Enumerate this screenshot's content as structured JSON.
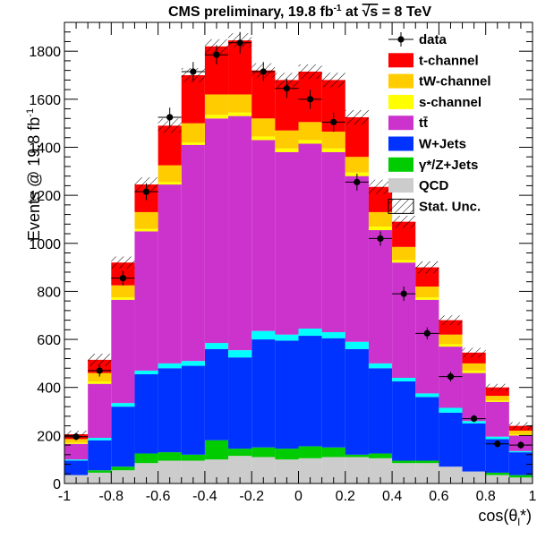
{
  "chart_data": {
    "type": "bar",
    "subtype": "stacked-histogram",
    "title_main": "CMS preliminary, 19.8 fb",
    "title_sup": "-1",
    "title_mid": " at ",
    "title_sqrt": "√s",
    "title_end": " = 8 TeV",
    "xlabel": "cos(θ",
    "xlabel_sub": "l",
    "xlabel_end": "*)",
    "ylabel": "Events @ 19.8 fb",
    "ylabel_sup": "-1",
    "xlim": [
      -1,
      1
    ],
    "ylim": [
      0,
      1920
    ],
    "bin_edges": [
      -1.0,
      -0.9,
      -0.8,
      -0.7,
      -0.6,
      -0.5,
      -0.4,
      -0.3,
      -0.2,
      -0.1,
      0.0,
      0.1,
      0.2,
      0.3,
      0.4,
      0.5,
      0.6,
      0.7,
      0.8,
      0.9,
      1.0
    ],
    "x_ticks": [
      -1,
      -0.8,
      -0.6,
      -0.4,
      -0.2,
      0,
      0.2,
      0.4,
      0.6,
      0.8,
      1
    ],
    "x_tick_labels": [
      "-1",
      "-0.8",
      "-0.6",
      "-0.4",
      "-0.2",
      "0",
      "0.2",
      "0.4",
      "0.6",
      "0.8",
      "1"
    ],
    "y_ticks": [
      0,
      200,
      400,
      600,
      800,
      1000,
      1200,
      1400,
      1600,
      1800
    ],
    "y_tick_labels": [
      "0",
      "200",
      "400",
      "600",
      "800",
      "1000",
      "1200",
      "1400",
      "1600",
      "1800"
    ],
    "series": [
      {
        "name": "QCD",
        "color": "#cccccc",
        "values": [
          35,
          45,
          55,
          85,
          95,
          95,
          100,
          115,
          110,
          100,
          105,
          110,
          110,
          105,
          85,
          85,
          70,
          50,
          35,
          25
        ]
      },
      {
        "name": "γ*/Z+Jets",
        "color": "#00cc00",
        "values": [
          0,
          10,
          15,
          40,
          35,
          25,
          80,
          30,
          40,
          45,
          50,
          40,
          10,
          20,
          10,
          10,
          0,
          0,
          10,
          10
        ]
      },
      {
        "name": "W+Jets",
        "color": "#0033ff",
        "values": [
          60,
          125,
          250,
          330,
          350,
          370,
          380,
          380,
          450,
          450,
          460,
          455,
          440,
          355,
          330,
          265,
          225,
          200,
          140,
          95
        ]
      },
      {
        "name": "W+Jets (light)",
        "color": "#00ffff",
        "values": [
          5,
          10,
          15,
          15,
          20,
          20,
          25,
          30,
          35,
          25,
          30,
          25,
          30,
          20,
          15,
          15,
          20,
          10,
          10,
          5
        ]
      },
      {
        "name": "tt̄",
        "color": "#cc33cc",
        "values": [
          65,
          225,
          430,
          580,
          745,
          900,
          935,
          975,
          795,
          760,
          770,
          750,
          690,
          555,
          480,
          390,
          255,
          200,
          145,
          65
        ]
      },
      {
        "name": "s-channel",
        "color": "#ffff00",
        "values": [
          5,
          10,
          10,
          10,
          10,
          10,
          15,
          15,
          15,
          15,
          15,
          15,
          15,
          15,
          10,
          10,
          10,
          10,
          5,
          5
        ]
      },
      {
        "name": "tW-channel",
        "color": "#ffcc00",
        "values": [
          15,
          35,
          50,
          70,
          70,
          80,
          85,
          75,
          75,
          75,
          75,
          70,
          65,
          60,
          55,
          45,
          40,
          30,
          20,
          15
        ]
      },
      {
        "name": "t-channel",
        "color": "#ff0000",
        "values": [
          20,
          55,
          95,
          115,
          165,
          200,
          200,
          225,
          200,
          210,
          210,
          215,
          165,
          105,
          105,
          80,
          60,
          45,
          35,
          20
        ]
      }
    ],
    "stat_unc": [
      15,
      25,
      25,
      30,
      30,
      30,
      30,
      30,
      30,
      30,
      30,
      30,
      30,
      30,
      25,
      25,
      20,
      20,
      15,
      15
    ],
    "data": {
      "name": "data",
      "x": [
        -0.95,
        -0.85,
        -0.75,
        -0.65,
        -0.55,
        -0.45,
        -0.35,
        -0.25,
        -0.15,
        -0.05,
        0.05,
        0.15,
        0.25,
        0.35,
        0.45,
        0.55,
        0.65,
        0.75,
        0.85,
        0.95
      ],
      "y": [
        195,
        470,
        855,
        1215,
        1525,
        1715,
        1785,
        1835,
        1715,
        1645,
        1600,
        1505,
        1255,
        1020,
        790,
        625,
        445,
        270,
        165,
        160
      ],
      "yerr": [
        15,
        25,
        30,
        35,
        40,
        40,
        40,
        45,
        40,
        40,
        40,
        40,
        35,
        30,
        30,
        25,
        20,
        15,
        15,
        15
      ]
    },
    "legend": {
      "placement": "top-right",
      "entries": [
        {
          "label": "data",
          "kind": "marker"
        },
        {
          "label": "t-channel",
          "kind": "fill",
          "color": "#ff0000"
        },
        {
          "label": "tW-channel",
          "kind": "fill",
          "color": "#ffcc00"
        },
        {
          "label": "s-channel",
          "kind": "fill",
          "color": "#ffff00"
        },
        {
          "label": "tt̄",
          "kind": "fill",
          "color": "#cc33cc"
        },
        {
          "label": "W+Jets",
          "kind": "fill",
          "color": "#0033ff"
        },
        {
          "label": "γ*/Z+Jets",
          "kind": "fill",
          "color": "#00cc00"
        },
        {
          "label": "QCD",
          "kind": "fill",
          "color": "#cccccc"
        },
        {
          "label": "Stat. Unc.",
          "kind": "hatch"
        }
      ]
    }
  }
}
